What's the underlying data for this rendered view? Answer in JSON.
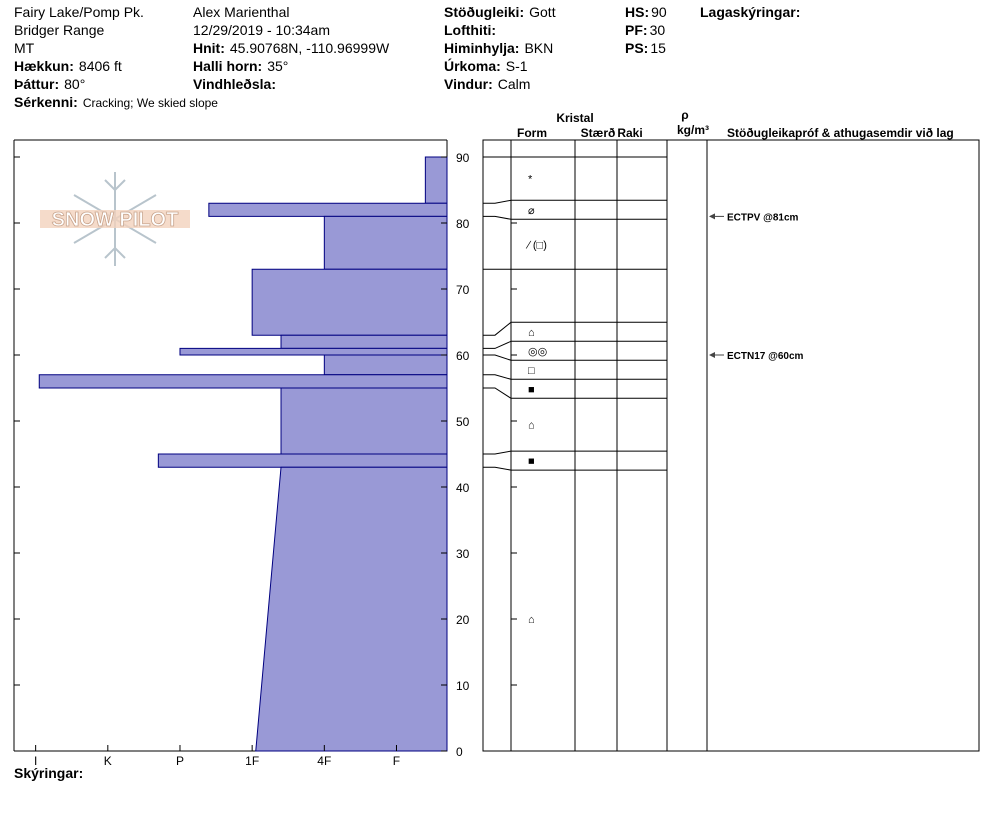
{
  "header": {
    "columns": [
      [
        {
          "value": "Fairy Lake/Pomp Pk."
        },
        {
          "value": "Bridger Range"
        },
        {
          "value": "MT"
        },
        {
          "label": "Hækkun:",
          "value": "8406 ft"
        },
        {
          "label": "Þáttur:",
          "value": "80°"
        },
        {
          "label": "Sérkenni:",
          "value": "Cracking;  We skied slope"
        }
      ],
      [
        {
          "value": "Alex Marienthal"
        },
        {
          "value": "12/29/2019 - 10:34am"
        },
        {
          "label": "Hnit:",
          "value": "45.90768N, -110.96999W"
        },
        {
          "label": "Halli horn:",
          "value": "35°"
        },
        {
          "label": "Vindhleðsla:"
        }
      ],
      [
        {
          "label": "Stöðugleiki:",
          "value": "Gott"
        },
        {
          "label": "Lofthiti:"
        },
        {
          "label": "Himinhylja:",
          "value": "BKN"
        },
        {
          "label": "Úrkoma:",
          "value": "S-1"
        },
        {
          "label": "Vindur:",
          "value": "Calm"
        }
      ],
      [
        {
          "label": "HS:",
          "value": "90"
        },
        {
          "label": "PF:",
          "value": "30"
        },
        {
          "label": "PS:",
          "value": "15"
        }
      ]
    ],
    "layer_notes_title": "Lagaskýringar:"
  },
  "chart_data": {
    "type": "snow-profile",
    "logo": "SNOW PILOT",
    "color": "#9999d6",
    "ylim": [
      0,
      90
    ],
    "yticks": [
      0,
      10,
      20,
      30,
      40,
      50,
      60,
      70,
      80,
      90
    ],
    "xlim": [
      0.3,
      6.3
    ],
    "xticks": [
      {
        "value": 6,
        "label": "I"
      },
      {
        "value": 5,
        "label": "K"
      },
      {
        "value": 4,
        "label": "P"
      },
      {
        "value": 3,
        "label": "1F"
      },
      {
        "value": 2,
        "label": "4F"
      },
      {
        "value": 1,
        "label": "F"
      }
    ],
    "layers": [
      {
        "top": 90,
        "bottom": 83,
        "hardness_top": 0.6,
        "hardness_bottom": 0.6,
        "form": "*"
      },
      {
        "top": 83,
        "bottom": 81,
        "hardness_top": 3.6,
        "hardness_bottom": 3.6,
        "form": "⌀"
      },
      {
        "top": 81,
        "bottom": 73,
        "hardness_top": 2,
        "hardness_bottom": 2,
        "form": "∕ (□)"
      },
      {
        "top": 73,
        "bottom": 63,
        "hardness_top": 3,
        "hardness_bottom": 3
      },
      {
        "top": 63,
        "bottom": 61,
        "hardness_top": 2.6,
        "hardness_bottom": 2.6,
        "form": "⌂"
      },
      {
        "top": 61,
        "bottom": 60,
        "hardness_top": 4,
        "hardness_bottom": 4,
        "form": "◎◎"
      },
      {
        "top": 60,
        "bottom": 57,
        "hardness_top": 2,
        "hardness_bottom": 2,
        "form": "□"
      },
      {
        "top": 57,
        "bottom": 55,
        "hardness_top": 5.95,
        "hardness_bottom": 5.95,
        "form": "■"
      },
      {
        "top": 55,
        "bottom": 45,
        "hardness_top": 2.6,
        "hardness_bottom": 2.6,
        "form": "⌂"
      },
      {
        "top": 45,
        "bottom": 43,
        "hardness_top": 4.3,
        "hardness_bottom": 4.3,
        "form": "■"
      },
      {
        "top": 43,
        "bottom": 0,
        "hardness_top": 2.6,
        "hardness_bottom": 2.95,
        "form": "⌂"
      }
    ],
    "columns": {
      "crystal": "Kristal",
      "form": "Form",
      "size": "Stærð",
      "moisture": "Raki",
      "density_symbol": "ρ",
      "density_unit": "kg/m³",
      "tests": "Stöðugleikapróf & athugasemdir við lag"
    },
    "tests": [
      {
        "depth": 81,
        "label": "ECTPV @81cm"
      },
      {
        "depth": 60,
        "label": "ECTN17 @60cm"
      }
    ],
    "footnote": "Skýringar:"
  }
}
